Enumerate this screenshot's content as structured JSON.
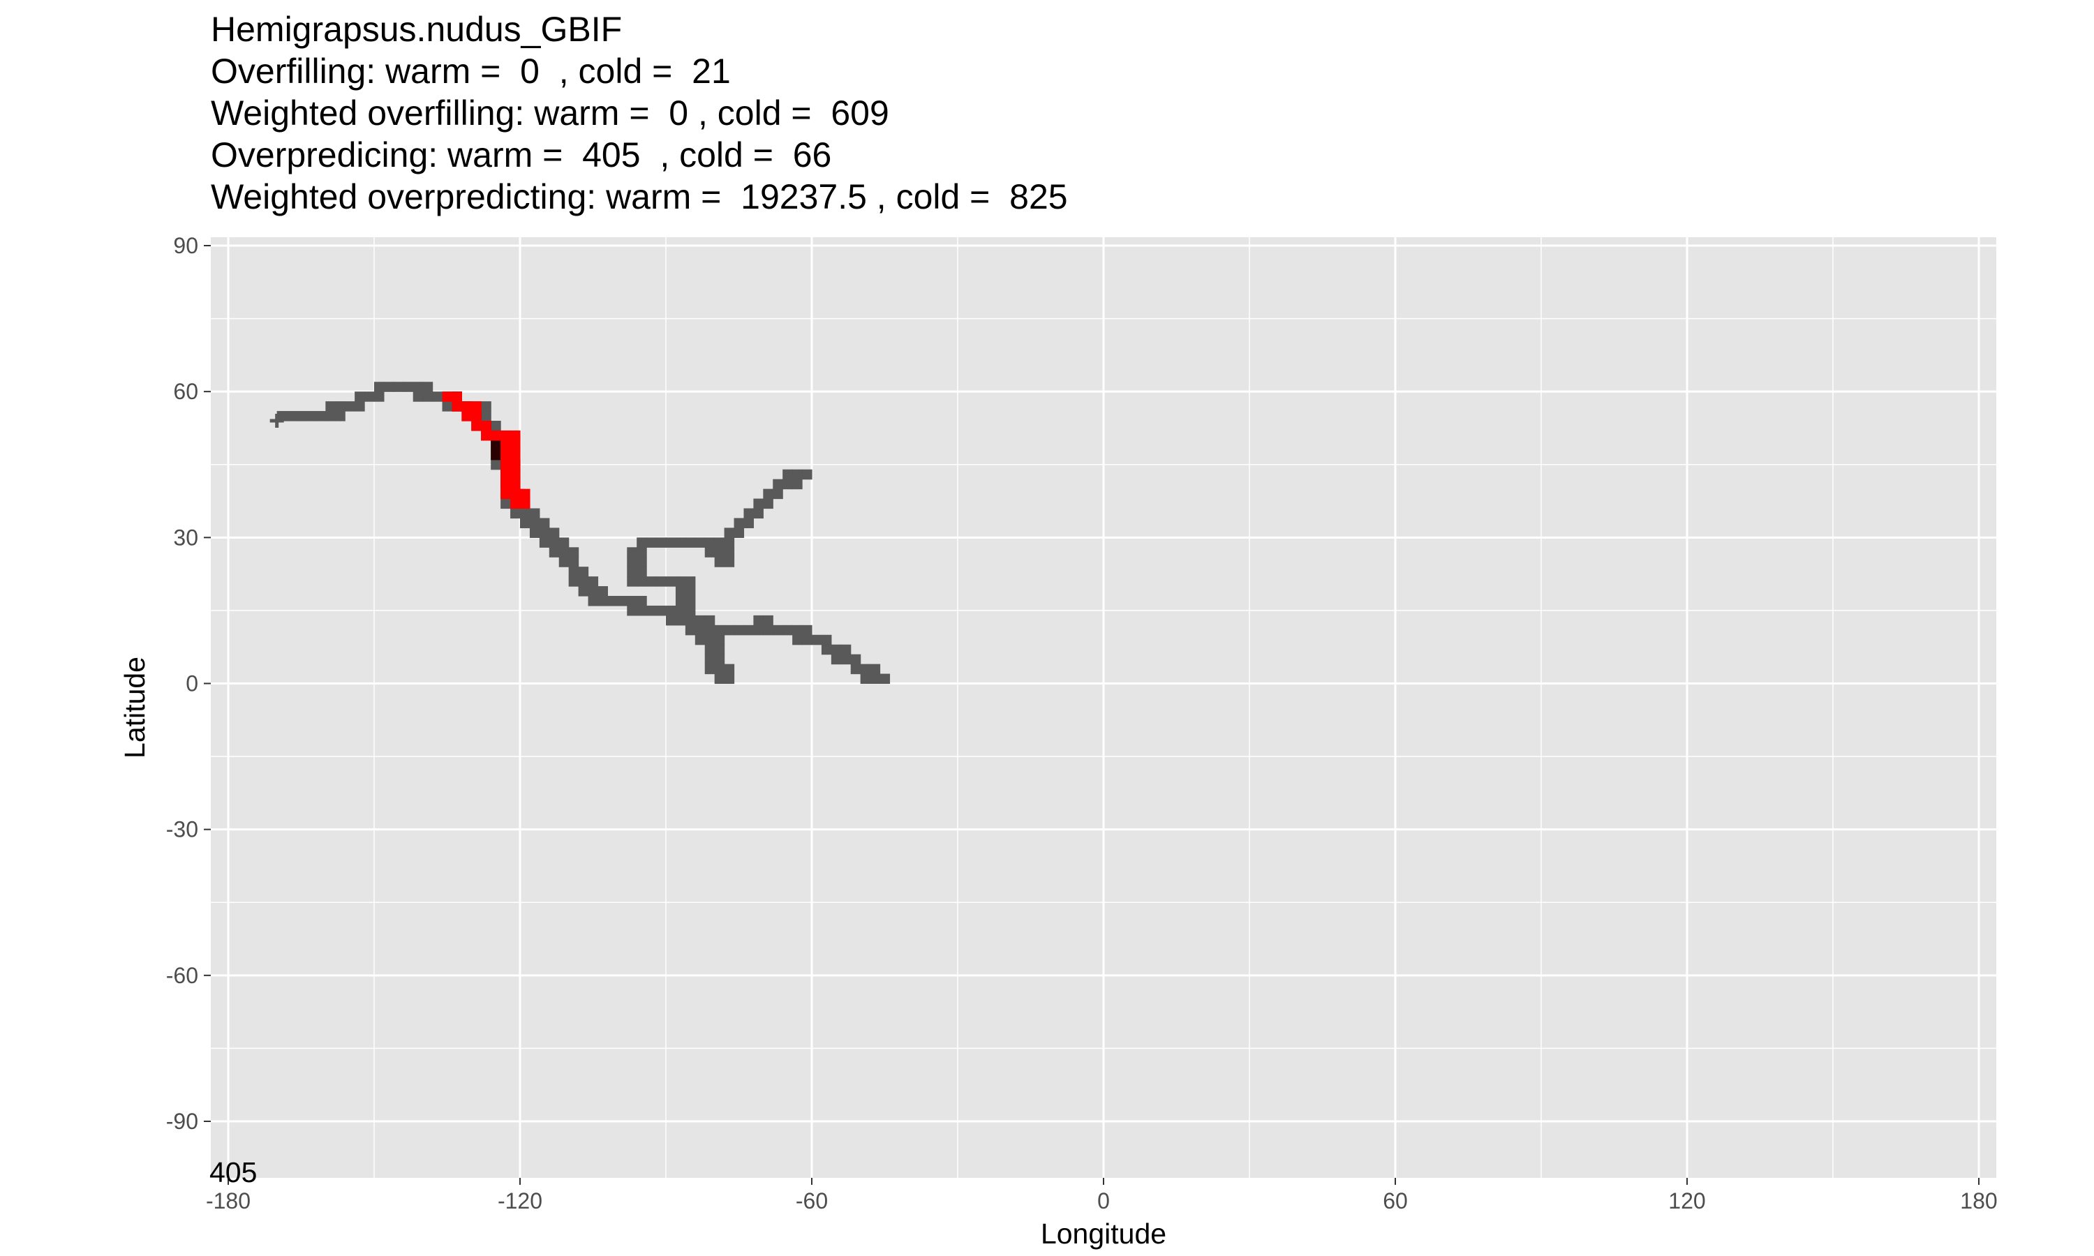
{
  "title_lines": [
    "Hemigrapsus.nudus_GBIF",
    "Overfilling: warm =  0  , cold =  21",
    "Weighted overfilling: warm =  0 , cold =  609",
    "Overpredicing: warm =  405  , cold =  66",
    "Weighted overpredicting: warm =  19237.5 , cold =  825"
  ],
  "chart_data": {
    "type": "heatmap",
    "xlabel": "Longitude",
    "ylabel": "Latitude",
    "xlim": [
      -180,
      180
    ],
    "ylim": [
      -90,
      90
    ],
    "x_ticks": [
      -180,
      -120,
      -60,
      0,
      60,
      120,
      180
    ],
    "y_ticks": [
      90,
      60,
      30,
      0,
      -30,
      -60,
      -90
    ],
    "grid": true,
    "corner_annotation": "405",
    "colors": {
      "panel_background": "#e5e5e5",
      "grid": "#ffffff",
      "overpredicted": "#595959",
      "observed_overlap": "#2b0000",
      "overfilled": "#ff0000"
    },
    "layers": [
      {
        "name": "overpredicted",
        "color": "#595959",
        "path": [
          [
            -170,
            54
          ],
          [
            -162,
            55
          ],
          [
            -156,
            57
          ],
          [
            -150,
            60
          ],
          [
            -142,
            60
          ],
          [
            -136,
            58
          ],
          [
            -130,
            56
          ],
          [
            -126,
            50
          ],
          [
            -124,
            44
          ],
          [
            -123,
            38
          ],
          [
            -120,
            34
          ],
          [
            -116,
            31
          ],
          [
            -112,
            26
          ],
          [
            -108,
            21
          ],
          [
            -104,
            17
          ],
          [
            -98,
            16
          ],
          [
            -92,
            15
          ],
          [
            -86,
            12
          ],
          [
            -82,
            9
          ],
          [
            -80,
            3
          ],
          [
            -80,
            1
          ]
        ],
        "branches": [
          [
            [
              -110,
              22
            ],
            [
              -106,
              18
            ],
            [
              -101,
              16
            ]
          ],
          [
            [
              -84,
              12
            ],
            [
              -78,
              11
            ],
            [
              -72,
              12
            ],
            [
              -66,
              11
            ],
            [
              -60,
              9
            ],
            [
              -55,
              6
            ],
            [
              -51,
              3
            ],
            [
              -48,
              1
            ]
          ],
          [
            [
              -85,
              12
            ],
            [
              -88,
              15
            ],
            [
              -88,
              20
            ],
            [
              -92,
              21
            ],
            [
              -96,
              20
            ],
            [
              -97,
              24
            ],
            [
              -96,
              28
            ],
            [
              -90,
              29
            ],
            [
              -84,
              29
            ],
            [
              -80,
              27
            ],
            [
              -79,
              25
            ]
          ],
          [
            [
              -80,
              27
            ],
            [
              -77,
              31
            ],
            [
              -74,
              34
            ],
            [
              -70,
              38
            ],
            [
              -67,
              41
            ],
            [
              -65,
              42
            ],
            [
              -63,
              43
            ]
          ]
        ]
      },
      {
        "name": "observed_overlap",
        "color": "#2b0000",
        "path": [
          [
            -134,
            58
          ],
          [
            -131,
            56
          ],
          [
            -128,
            53
          ],
          [
            -125,
            50
          ],
          [
            -124,
            46
          ],
          [
            -124,
            40
          ]
        ]
      },
      {
        "name": "overfilled",
        "color": "#ff0000",
        "path": [
          [
            -135,
            59
          ],
          [
            -132,
            56
          ],
          [
            -129,
            53
          ],
          [
            -126,
            50
          ],
          [
            -124,
            50
          ],
          [
            -123,
            47
          ],
          [
            -123,
            43
          ],
          [
            -122,
            39
          ],
          [
            -121,
            36
          ]
        ]
      }
    ]
  }
}
